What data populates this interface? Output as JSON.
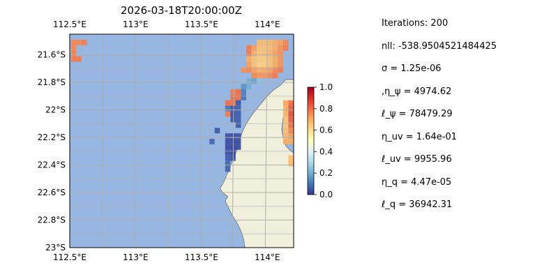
{
  "chart_data": {
    "type": "heatmap",
    "title": "2026-03-18T20:00:00Z",
    "map": {
      "x_ticks": [
        {
          "lon": 112.5,
          "label": "112.5°E"
        },
        {
          "lon": 113.0,
          "label": "113°E"
        },
        {
          "lon": 113.5,
          "label": "113.5°E"
        },
        {
          "lon": 114.0,
          "label": "114°E"
        }
      ],
      "y_ticks": [
        {
          "lat": -21.6,
          "label": "21.6°S"
        },
        {
          "lat": -21.8,
          "label": "21.8°S"
        },
        {
          "lat": -22.0,
          "label": "22°S"
        },
        {
          "lat": -22.2,
          "label": "22.2°S"
        },
        {
          "lat": -22.4,
          "label": "22.4°S"
        },
        {
          "lat": -22.6,
          "label": "22.6°S"
        },
        {
          "lat": -22.8,
          "label": "22.8°S"
        },
        {
          "lat": -23.0,
          "label": "23°S"
        }
      ],
      "lon_range": [
        112.5,
        114.2
      ],
      "lat_range": [
        -23.0,
        -21.45
      ],
      "grid": true,
      "ocean_color": "#97b6e1",
      "land_color": "#efefdb",
      "grid_color": "#b0b0b0",
      "coast_color": "#808080"
    },
    "colorbar": {
      "range": [
        0,
        1
      ],
      "ticks": [
        "0.0",
        "0.2",
        "0.4",
        "0.6",
        "0.8",
        "1.0"
      ],
      "colormap": "RdYlBu_r"
    },
    "cells": [
      {
        "lon": 112.53,
        "lat": -21.51,
        "value": 0.76
      },
      {
        "lon": 112.57,
        "lat": -21.51,
        "value": 0.76
      },
      {
        "lon": 112.61,
        "lat": -21.51,
        "value": 0.78
      },
      {
        "lon": 112.53,
        "lat": -21.55,
        "value": 0.76
      },
      {
        "lon": 112.53,
        "lat": -21.59,
        "value": 0.77
      },
      {
        "lon": 112.53,
        "lat": -21.63,
        "value": 0.78
      },
      {
        "lon": 112.57,
        "lat": -21.63,
        "value": 0.78
      },
      {
        "lon": 113.86,
        "lat": -21.55,
        "value": 0.78
      },
      {
        "lon": 113.86,
        "lat": -21.59,
        "value": 0.78
      },
      {
        "lon": 113.9,
        "lat": -21.55,
        "value": 0.72
      },
      {
        "lon": 113.9,
        "lat": -21.59,
        "value": 0.7
      },
      {
        "lon": 113.94,
        "lat": -21.51,
        "value": 0.68
      },
      {
        "lon": 113.94,
        "lat": -21.55,
        "value": 0.66
      },
      {
        "lon": 113.94,
        "lat": -21.59,
        "value": 0.65
      },
      {
        "lon": 113.98,
        "lat": -21.51,
        "value": 0.67
      },
      {
        "lon": 113.98,
        "lat": -21.55,
        "value": 0.66
      },
      {
        "lon": 113.98,
        "lat": -21.59,
        "value": 0.66
      },
      {
        "lon": 114.02,
        "lat": -21.51,
        "value": 0.68
      },
      {
        "lon": 114.02,
        "lat": -21.55,
        "value": 0.67
      },
      {
        "lon": 114.02,
        "lat": -21.59,
        "value": 0.68
      },
      {
        "lon": 114.06,
        "lat": -21.51,
        "value": 0.7
      },
      {
        "lon": 114.06,
        "lat": -21.55,
        "value": 0.7
      },
      {
        "lon": 114.06,
        "lat": -21.59,
        "value": 0.72
      },
      {
        "lon": 114.1,
        "lat": -21.51,
        "value": 0.72
      },
      {
        "lon": 114.1,
        "lat": -21.55,
        "value": 0.74
      },
      {
        "lon": 114.1,
        "lat": -21.59,
        "value": 0.75
      },
      {
        "lon": 114.14,
        "lat": -21.51,
        "value": 0.76
      },
      {
        "lon": 114.14,
        "lat": -21.55,
        "value": 0.78
      },
      {
        "lon": 113.86,
        "lat": -21.63,
        "value": 0.7
      },
      {
        "lon": 113.9,
        "lat": -21.63,
        "value": 0.66
      },
      {
        "lon": 113.94,
        "lat": -21.63,
        "value": 0.64
      },
      {
        "lon": 113.98,
        "lat": -21.63,
        "value": 0.64
      },
      {
        "lon": 114.02,
        "lat": -21.63,
        "value": 0.66
      },
      {
        "lon": 114.06,
        "lat": -21.63,
        "value": 0.7
      },
      {
        "lon": 114.1,
        "lat": -21.63,
        "value": 0.74
      },
      {
        "lon": 113.86,
        "lat": -21.67,
        "value": 0.72
      },
      {
        "lon": 113.9,
        "lat": -21.67,
        "value": 0.66
      },
      {
        "lon": 113.94,
        "lat": -21.67,
        "value": 0.63
      },
      {
        "lon": 113.98,
        "lat": -21.67,
        "value": 0.64
      },
      {
        "lon": 114.02,
        "lat": -21.67,
        "value": 0.66
      },
      {
        "lon": 114.06,
        "lat": -21.67,
        "value": 0.7
      },
      {
        "lon": 114.1,
        "lat": -21.67,
        "value": 0.74
      },
      {
        "lon": 113.82,
        "lat": -21.71,
        "value": 0.75
      },
      {
        "lon": 113.86,
        "lat": -21.71,
        "value": 0.76
      },
      {
        "lon": 113.9,
        "lat": -21.71,
        "value": 0.72
      },
      {
        "lon": 113.94,
        "lat": -21.71,
        "value": 0.7
      },
      {
        "lon": 113.98,
        "lat": -21.71,
        "value": 0.7
      },
      {
        "lon": 114.02,
        "lat": -21.71,
        "value": 0.72
      },
      {
        "lon": 114.06,
        "lat": -21.71,
        "value": 0.76
      },
      {
        "lon": 114.1,
        "lat": -21.71,
        "value": 0.78
      },
      {
        "lon": 113.9,
        "lat": -21.75,
        "value": 0.76
      },
      {
        "lon": 113.94,
        "lat": -21.75,
        "value": 0.74
      },
      {
        "lon": 113.98,
        "lat": -21.75,
        "value": 0.74
      },
      {
        "lon": 114.02,
        "lat": -21.75,
        "value": 0.76
      },
      {
        "lon": 114.06,
        "lat": -21.75,
        "value": 0.78
      },
      {
        "lon": 113.86,
        "lat": -21.79,
        "value": 0.2
      },
      {
        "lon": 113.9,
        "lat": -21.79,
        "value": 0.18
      },
      {
        "lon": 113.94,
        "lat": -21.79,
        "value": 0.25
      },
      {
        "lon": 113.82,
        "lat": -21.83,
        "value": 0.15
      },
      {
        "lon": 113.86,
        "lat": -21.83,
        "value": 0.2
      },
      {
        "lon": 113.74,
        "lat": -21.87,
        "value": 0.78
      },
      {
        "lon": 113.78,
        "lat": -21.87,
        "value": 0.8
      },
      {
        "lon": 113.82,
        "lat": -21.87,
        "value": 0.12
      },
      {
        "lon": 113.74,
        "lat": -21.91,
        "value": 0.8
      },
      {
        "lon": 113.78,
        "lat": -21.91,
        "value": 0.8
      },
      {
        "lon": 113.82,
        "lat": -21.91,
        "value": 0.1
      },
      {
        "lon": 113.7,
        "lat": -21.95,
        "value": 0.8
      },
      {
        "lon": 113.74,
        "lat": -21.95,
        "value": 0.8
      },
      {
        "lon": 113.78,
        "lat": -21.95,
        "value": 0.05
      },
      {
        "lon": 113.7,
        "lat": -21.99,
        "value": 0.1
      },
      {
        "lon": 113.74,
        "lat": -21.99,
        "value": 0.04
      },
      {
        "lon": 113.78,
        "lat": -21.99,
        "value": 0.06
      },
      {
        "lon": 113.7,
        "lat": -22.03,
        "value": 0.78
      },
      {
        "lon": 113.74,
        "lat": -22.03,
        "value": 0.04
      },
      {
        "lon": 113.78,
        "lat": -22.03,
        "value": 0.06
      },
      {
        "lon": 113.74,
        "lat": -22.07,
        "value": 0.05
      },
      {
        "lon": 113.78,
        "lat": -22.07,
        "value": 0.06
      },
      {
        "lon": 113.78,
        "lat": -22.11,
        "value": 0.05
      },
      {
        "lon": 113.62,
        "lat": -22.15,
        "value": 0.05
      },
      {
        "lon": 113.7,
        "lat": -22.19,
        "value": 0.04
      },
      {
        "lon": 113.74,
        "lat": -22.19,
        "value": 0.03
      },
      {
        "lon": 113.78,
        "lat": -22.19,
        "value": 0.04
      },
      {
        "lon": 113.58,
        "lat": -22.23,
        "value": 0.08
      },
      {
        "lon": 113.7,
        "lat": -22.23,
        "value": 0.03
      },
      {
        "lon": 113.74,
        "lat": -22.23,
        "value": 0.02
      },
      {
        "lon": 113.78,
        "lat": -22.23,
        "value": 0.03
      },
      {
        "lon": 113.7,
        "lat": -22.27,
        "value": 0.03
      },
      {
        "lon": 113.74,
        "lat": -22.27,
        "value": 0.02
      },
      {
        "lon": 113.78,
        "lat": -22.27,
        "value": 0.03
      },
      {
        "lon": 113.7,
        "lat": -22.31,
        "value": 0.04
      },
      {
        "lon": 113.74,
        "lat": -22.31,
        "value": 0.02
      },
      {
        "lon": 113.7,
        "lat": -22.35,
        "value": 0.06
      },
      {
        "lon": 113.74,
        "lat": -22.35,
        "value": 0.04
      },
      {
        "lon": 113.7,
        "lat": -22.39,
        "value": 0.08
      },
      {
        "lon": 113.7,
        "lat": -22.43,
        "value": 0.07
      },
      {
        "lon": 114.14,
        "lat": -21.95,
        "value": 0.72
      },
      {
        "lon": 114.18,
        "lat": -21.95,
        "value": 0.8
      },
      {
        "lon": 114.14,
        "lat": -21.99,
        "value": 0.7
      },
      {
        "lon": 114.18,
        "lat": -21.99,
        "value": 0.82
      },
      {
        "lon": 114.14,
        "lat": -22.03,
        "value": 0.68
      },
      {
        "lon": 114.18,
        "lat": -22.03,
        "value": 0.84
      },
      {
        "lon": 114.14,
        "lat": -22.07,
        "value": 0.66
      },
      {
        "lon": 114.18,
        "lat": -22.07,
        "value": 0.82
      },
      {
        "lon": 114.14,
        "lat": -22.11,
        "value": 0.65
      },
      {
        "lon": 114.18,
        "lat": -22.11,
        "value": 0.8
      },
      {
        "lon": 114.14,
        "lat": -22.15,
        "value": 0.66
      },
      {
        "lon": 114.18,
        "lat": -22.15,
        "value": 0.76
      },
      {
        "lon": 114.14,
        "lat": -22.19,
        "value": 0.68
      },
      {
        "lon": 114.18,
        "lat": -22.19,
        "value": 0.72
      },
      {
        "lon": 114.14,
        "lat": -22.23,
        "value": 0.7
      },
      {
        "lon": 114.18,
        "lat": -22.23,
        "value": 0.7
      },
      {
        "lon": 114.18,
        "lat": -22.35,
        "value": 0.68
      },
      {
        "lon": 114.18,
        "lat": -22.39,
        "value": 0.68
      }
    ]
  },
  "stats": [
    "Iterations: 200",
    "nll: -538.9504521484425",
    "σ = 1.25e-06",
    ",η_ψ = 4974.62",
    "ℓ_ψ = 78479.29",
    "η_uv = 1.64e-01",
    "ℓ_uv = 9955.96",
    "η_q = 4.47e-05",
    "ℓ_q = 36942.31"
  ]
}
